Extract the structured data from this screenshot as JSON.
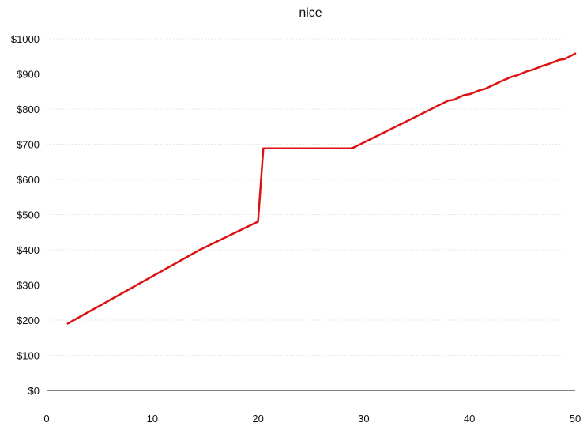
{
  "chart_data": {
    "type": "line",
    "title": "nice",
    "xlabel": "",
    "ylabel": "",
    "xlim": [
      0,
      50
    ],
    "ylim": [
      0,
      1000
    ],
    "x_ticks": [
      0,
      10,
      20,
      30,
      40,
      50
    ],
    "x_tick_labels": [
      "0",
      "10",
      "20",
      "30",
      "40",
      "50"
    ],
    "y_ticks": [
      0,
      100,
      200,
      300,
      400,
      500,
      600,
      700,
      800,
      900,
      1000
    ],
    "y_tick_labels": [
      "$0",
      "$100",
      "$200",
      "$300",
      "$400",
      "$500",
      "$600",
      "$700",
      "$800",
      "$900",
      "$1000"
    ],
    "grid": "horizontal",
    "legend": "none",
    "colors": {
      "line": "#dd1111",
      "grid": "#d0d0d0",
      "axis": "#000000"
    },
    "series": [
      {
        "x": [
          2,
          14.5,
          20,
          20.5,
          28.7,
          29,
          38,
          38.5,
          39.5,
          40,
          41,
          41.5,
          42.5,
          43,
          44,
          44.5,
          45.5,
          46,
          47,
          47.5,
          48.5,
          49,
          50
        ],
        "y": [
          190,
          400,
          480,
          688,
          688,
          690,
          824,
          826,
          840,
          842,
          854,
          858,
          872,
          879,
          892,
          896,
          908,
          912,
          924,
          928,
          940,
          942,
          958
        ]
      }
    ]
  }
}
